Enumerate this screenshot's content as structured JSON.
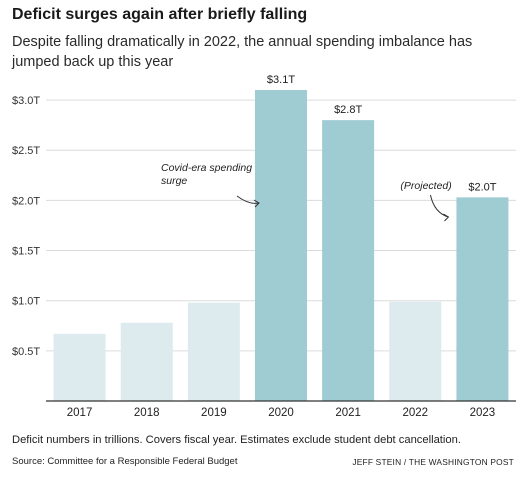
{
  "title": "Deficit surges again after briefly falling",
  "subtitle": "Despite falling dramatically in 2022, the annual spending imbalance has jumped back up this year",
  "chart_data": {
    "type": "bar",
    "categories": [
      "2017",
      "2018",
      "2019",
      "2020",
      "2021",
      "2022",
      "2023"
    ],
    "values": [
      0.67,
      0.78,
      0.98,
      3.1,
      2.8,
      0.99,
      2.03
    ],
    "value_labels": [
      "",
      "",
      "",
      "$3.1T",
      "$2.8T",
      "",
      "$2.0T"
    ],
    "highlighted": [
      false,
      false,
      false,
      true,
      true,
      false,
      true
    ],
    "yticks": [
      0.5,
      1.0,
      1.5,
      2.0,
      2.5,
      3.0
    ],
    "ytick_labels": [
      "$0.5T",
      "$1.0T",
      "$1.5T",
      "$2.0T",
      "$2.5T",
      "$3.0T"
    ],
    "ylim": [
      0,
      3.2
    ],
    "grid": true,
    "colors": {
      "highlight": "#9fcbd3",
      "muted": "#ddebef",
      "grid": "#dcdcdc",
      "axis": "#333333"
    },
    "annotations": [
      {
        "text_lines": [
          "Covid-era spending",
          "surge"
        ],
        "target": "2020"
      },
      {
        "text_lines": [
          "(Projected)"
        ],
        "target": "2023"
      }
    ]
  },
  "footer": {
    "note": "Deficit numbers in trillions. Covers fiscal year. Estimates exclude student debt cancellation.",
    "source": "Source: Committee for a Responsible Federal Budget",
    "credit": "JEFF STEIN / THE WASHINGTON POST"
  }
}
